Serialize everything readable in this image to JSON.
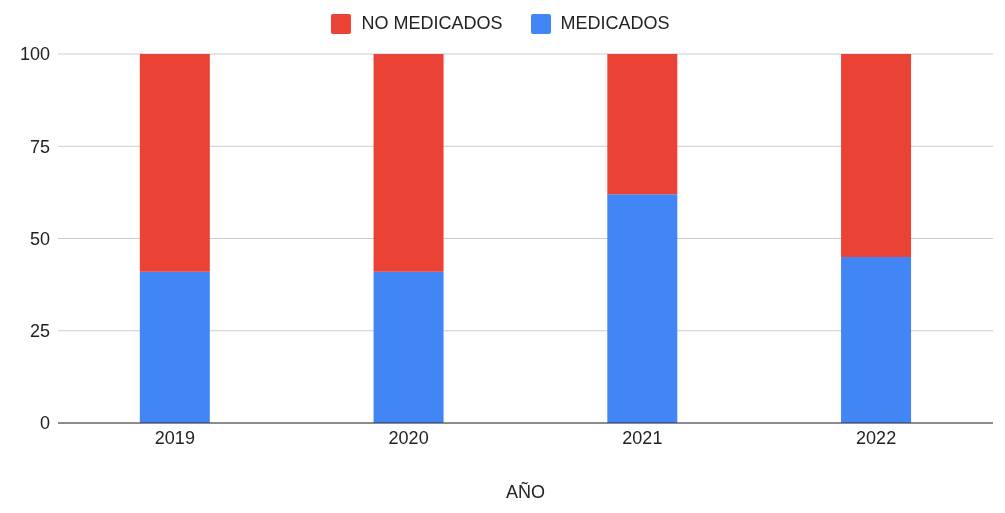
{
  "chart_data": {
    "type": "bar",
    "stacked": true,
    "xlabel": "AÑO",
    "categories": [
      "2019",
      "2020",
      "2021",
      "2022"
    ],
    "series": [
      {
        "name": "MEDICADOS",
        "color": "#4285f4",
        "values": [
          41,
          41,
          62,
          45
        ]
      },
      {
        "name": "NO MEDICADOS",
        "color": "#ea4335",
        "values": [
          59,
          59,
          38,
          55
        ]
      }
    ],
    "ylim": [
      0,
      100
    ],
    "yticks": [
      0,
      25,
      50,
      75,
      100
    ],
    "grid": "y",
    "legend": "top"
  }
}
